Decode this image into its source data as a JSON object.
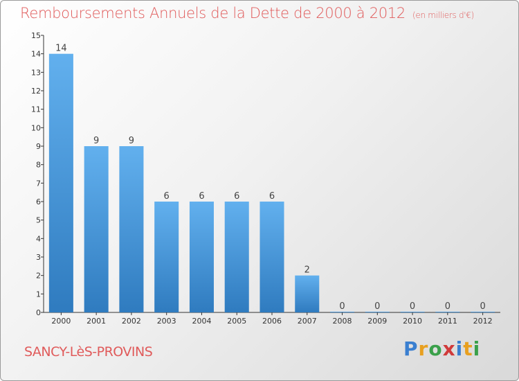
{
  "header": {
    "title": "Remboursements Annuels de la Dette de 2000 à 2012",
    "subtitle": "(en milliers d'€)"
  },
  "footer": {
    "location": "SANCY-LèS-PROVINS",
    "logo_letters": [
      "P",
      "r",
      "o",
      "x",
      "i",
      "t",
      "i"
    ],
    "logo_colors": [
      "#3a7fd0",
      "#e8a020",
      "#3aa04a",
      "#d03a3a",
      "#3a7fd0",
      "#e8a020",
      "#3aa04a"
    ]
  },
  "colors": {
    "bar_light": "#62b0ee",
    "bar_dark": "#2f7bbf",
    "title": "#e05a5a"
  },
  "chart_data": {
    "type": "bar",
    "title": "Remboursements Annuels de la Dette de 2000 à 2012",
    "subtitle": "(en milliers d'€)",
    "categories": [
      "2000",
      "2001",
      "2002",
      "2003",
      "2004",
      "2005",
      "2006",
      "2007",
      "2008",
      "2009",
      "2010",
      "2011",
      "2012"
    ],
    "values": [
      14,
      9,
      9,
      6,
      6,
      6,
      6,
      2,
      0,
      0,
      0,
      0,
      0
    ],
    "ylim": [
      0,
      15
    ],
    "yticks": [
      0,
      1,
      2,
      3,
      4,
      5,
      6,
      7,
      8,
      9,
      10,
      11,
      12,
      13,
      14,
      15
    ],
    "grid": false,
    "legend": "none"
  }
}
